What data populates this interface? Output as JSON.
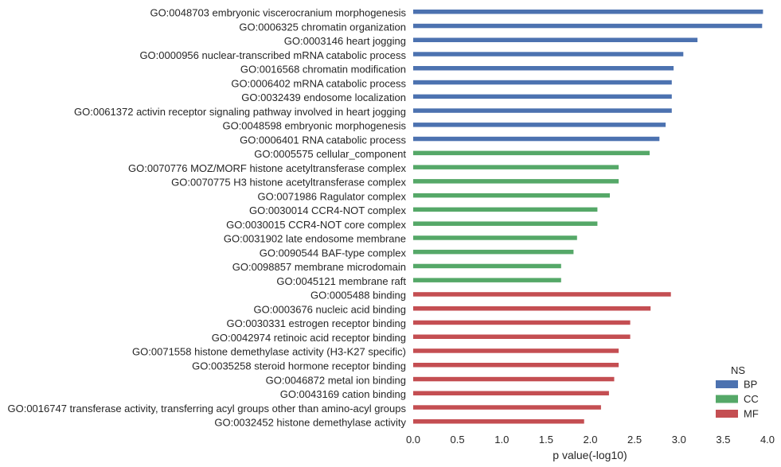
{
  "chart_data": {
    "type": "bar",
    "orientation": "horizontal",
    "xlabel": "p value(-log10)",
    "ylabel": "",
    "xlim": [
      0,
      4.0
    ],
    "xticks": [
      "0.0",
      "0.5",
      "1.0",
      "1.5",
      "2.0",
      "2.5",
      "3.0",
      "3.5",
      "4.0"
    ],
    "grid": false,
    "legend": {
      "title": "NS",
      "placement": "bottom-right",
      "entries": [
        {
          "name": "BP",
          "color": "#4c72b0"
        },
        {
          "name": "CC",
          "color": "#55a868"
        },
        {
          "name": "MF",
          "color": "#c44e52"
        }
      ]
    },
    "bars": [
      {
        "label": "GO:0048703 embryonic viscerocranium morphogenesis",
        "ns": "BP",
        "value": 3.95
      },
      {
        "label": "GO:0006325 chromatin organization",
        "ns": "BP",
        "value": 3.94
      },
      {
        "label": "GO:0003146 heart jogging",
        "ns": "BP",
        "value": 3.21
      },
      {
        "label": "GO:0000956 nuclear-transcribed mRNA catabolic process",
        "ns": "BP",
        "value": 3.05
      },
      {
        "label": "GO:0016568 chromatin modification",
        "ns": "BP",
        "value": 2.94
      },
      {
        "label": "GO:0006402 mRNA catabolic process",
        "ns": "BP",
        "value": 2.92
      },
      {
        "label": "GO:0032439 endosome localization",
        "ns": "BP",
        "value": 2.92
      },
      {
        "label": "GO:0061372 activin receptor signaling pathway involved in heart jogging",
        "ns": "BP",
        "value": 2.92
      },
      {
        "label": "GO:0048598 embryonic morphogenesis",
        "ns": "BP",
        "value": 2.85
      },
      {
        "label": "GO:0006401 RNA catabolic process",
        "ns": "BP",
        "value": 2.78
      },
      {
        "label": "GO:0005575 cellular_component",
        "ns": "CC",
        "value": 2.67
      },
      {
        "label": "GO:0070776 MOZ/MORF histone acetyltransferase complex",
        "ns": "CC",
        "value": 2.32
      },
      {
        "label": "GO:0070775 H3 histone acetyltransferase complex",
        "ns": "CC",
        "value": 2.32
      },
      {
        "label": "GO:0071986 Ragulator complex",
        "ns": "CC",
        "value": 2.22
      },
      {
        "label": "GO:0030014 CCR4-NOT complex",
        "ns": "CC",
        "value": 2.08
      },
      {
        "label": "GO:0030015 CCR4-NOT core complex",
        "ns": "CC",
        "value": 2.08
      },
      {
        "label": "GO:0031902 late endosome membrane",
        "ns": "CC",
        "value": 1.85
      },
      {
        "label": "GO:0090544 BAF-type complex",
        "ns": "CC",
        "value": 1.81
      },
      {
        "label": "GO:0098857 membrane microdomain",
        "ns": "CC",
        "value": 1.67
      },
      {
        "label": "GO:0045121 membrane raft",
        "ns": "CC",
        "value": 1.67
      },
      {
        "label": "GO:0005488 binding",
        "ns": "MF",
        "value": 2.91
      },
      {
        "label": "GO:0003676 nucleic acid binding",
        "ns": "MF",
        "value": 2.68
      },
      {
        "label": "GO:0030331 estrogen receptor binding",
        "ns": "MF",
        "value": 2.45
      },
      {
        "label": "GO:0042974 retinoic acid receptor binding",
        "ns": "MF",
        "value": 2.45
      },
      {
        "label": "GO:0071558 histone demethylase activity (H3-K27 specific)",
        "ns": "MF",
        "value": 2.32
      },
      {
        "label": "GO:0035258 steroid hormone receptor binding",
        "ns": "MF",
        "value": 2.32
      },
      {
        "label": "GO:0046872 metal ion binding",
        "ns": "MF",
        "value": 2.27
      },
      {
        "label": "GO:0043169 cation binding",
        "ns": "MF",
        "value": 2.21
      },
      {
        "label": "GO:0016747 transferase activity, transferring acyl groups other than amino-acyl groups",
        "ns": "MF",
        "value": 2.12
      },
      {
        "label": "GO:0032452 histone demethylase activity",
        "ns": "MF",
        "value": 1.93
      }
    ]
  }
}
